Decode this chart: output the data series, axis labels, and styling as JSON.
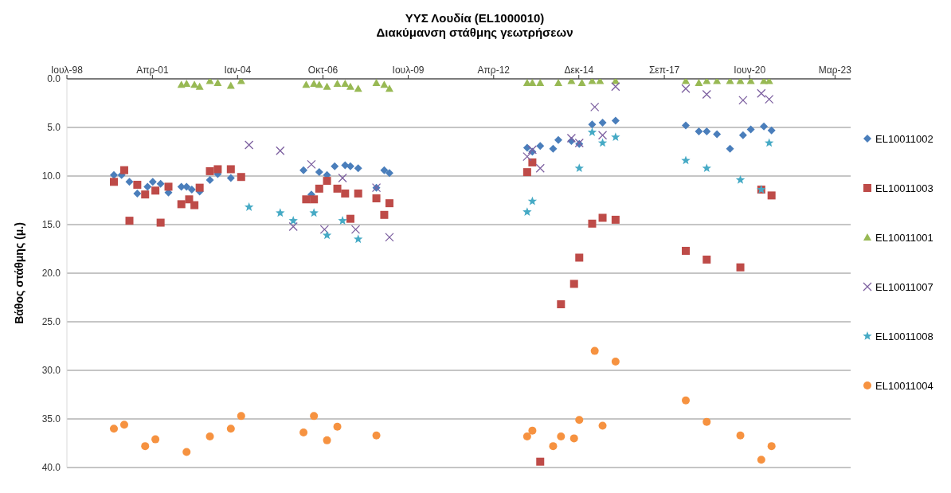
{
  "chart_data": {
    "type": "scatter",
    "title": "ΥΥΣ Λουδία (EL1000010)",
    "subtitle": "Διακύμανση στάθμης γεωτρήσεων",
    "ylabel": "Βάθος στάθμης (μ.)",
    "xlim": [
      "1998-07-31",
      "2023-09-13"
    ],
    "xticks": [
      {
        "value": "1998-07-31",
        "label": "Ιουλ-98"
      },
      {
        "value": "2001-04-27",
        "label": "Απρ-01"
      },
      {
        "value": "2004-01-19",
        "label": "Ιαν-04"
      },
      {
        "value": "2006-10-15",
        "label": "Οκτ-06"
      },
      {
        "value": "2009-07-09",
        "label": "Ιουλ-09"
      },
      {
        "value": "2012-04-04",
        "label": "Απρ-12"
      },
      {
        "value": "2014-12-27",
        "label": "Δεκ-14"
      },
      {
        "value": "2017-09-23",
        "label": "Σεπ-17"
      },
      {
        "value": "2020-06-17",
        "label": "Ιουν-20"
      },
      {
        "value": "2023-03-14",
        "label": "Μαρ-23"
      }
    ],
    "ylim": [
      40,
      0
    ],
    "yticks": [
      {
        "value": 0,
        "label": "0.0"
      },
      {
        "value": 5,
        "label": "5.0"
      },
      {
        "value": 10,
        "label": "10.0"
      },
      {
        "value": 15,
        "label": "15.0"
      },
      {
        "value": 20,
        "label": "20.0"
      },
      {
        "value": 25,
        "label": "25.0"
      },
      {
        "value": 30,
        "label": "30.0"
      },
      {
        "value": 35,
        "label": "35.0"
      },
      {
        "value": 40,
        "label": "40.0"
      }
    ],
    "grid": "y",
    "legend": "right",
    "series": [
      {
        "name": "EL10011002",
        "color": "#4a7ebb",
        "marker": "diamond",
        "x": [
          "2000-02",
          "2000-05",
          "2000-08",
          "2000-11",
          "2001-03",
          "2001-05",
          "2001-08",
          "2001-11",
          "2002-04",
          "2002-06",
          "2002-08",
          "2002-11",
          "2003-03",
          "2003-06",
          "2003-11",
          "2006-03",
          "2006-06",
          "2006-09",
          "2006-12",
          "2007-03",
          "2007-07",
          "2007-09",
          "2007-12",
          "2008-07",
          "2008-10",
          "2008-12",
          "2013-05",
          "2013-07",
          "2013-10",
          "2014-03",
          "2014-05",
          "2014-10",
          "2015-01",
          "2015-06",
          "2015-10",
          "2016-03",
          "2018-06",
          "2018-11",
          "2019-02",
          "2019-06",
          "2019-11",
          "2020-04",
          "2020-07",
          "2020-12",
          "2021-03"
        ],
        "values": [
          9.9,
          9.9,
          10.6,
          11.8,
          11.1,
          10.6,
          10.8,
          11.7,
          11.1,
          11.1,
          11.4,
          11.6,
          10.4,
          9.8,
          10.2,
          9.4,
          11.9,
          9.6,
          9.9,
          9.0,
          8.9,
          9.0,
          9.2,
          11.2,
          9.4,
          9.7,
          7.1,
          7.5,
          6.9,
          7.2,
          6.3,
          6.4,
          6.7,
          4.7,
          4.5,
          4.3,
          4.8,
          5.4,
          5.4,
          5.7,
          7.2,
          5.8,
          5.2,
          4.9,
          5.3
        ]
      },
      {
        "name": "EL10011003",
        "color": "#be4b48",
        "marker": "square",
        "x": [
          "2000-02",
          "2000-06",
          "2000-08",
          "2000-11",
          "2001-02",
          "2001-06",
          "2001-08",
          "2001-11",
          "2002-04",
          "2002-07",
          "2002-09",
          "2002-11",
          "2003-03",
          "2003-06",
          "2003-11",
          "2004-03",
          "2006-04",
          "2006-07",
          "2006-09",
          "2006-12",
          "2007-04",
          "2007-07",
          "2007-09",
          "2007-12",
          "2008-07",
          "2008-10",
          "2008-12",
          "2013-05",
          "2013-07",
          "2013-10",
          "2014-06",
          "2014-11",
          "2015-01",
          "2015-06",
          "2015-10",
          "2016-03",
          "2018-06",
          "2019-02",
          "2020-03",
          "2020-11",
          "2021-03"
        ],
        "values": [
          10.6,
          9.4,
          14.6,
          10.9,
          11.9,
          11.5,
          14.8,
          11.1,
          12.9,
          12.4,
          13.0,
          11.2,
          9.5,
          9.3,
          9.3,
          10.1,
          12.4,
          12.4,
          11.3,
          10.5,
          11.3,
          11.8,
          14.4,
          11.8,
          12.3,
          14.0,
          12.8,
          9.6,
          8.6,
          39.4,
          23.2,
          21.1,
          18.4,
          14.9,
          14.3,
          14.5,
          17.7,
          18.6,
          19.4,
          11.4,
          12.0
        ]
      },
      {
        "name": "EL10011001",
        "color": "#98b954",
        "marker": "triangle",
        "x": [
          "2002-04",
          "2002-06",
          "2002-09",
          "2002-11",
          "2003-03",
          "2003-06",
          "2003-11",
          "2004-03",
          "2006-04",
          "2006-07",
          "2006-09",
          "2006-12",
          "2007-04",
          "2007-07",
          "2007-09",
          "2007-12",
          "2008-07",
          "2008-10",
          "2008-12",
          "2013-05",
          "2013-07",
          "2013-10",
          "2014-05",
          "2014-10",
          "2015-02",
          "2015-06",
          "2015-09",
          "2016-03",
          "2018-06",
          "2018-11",
          "2019-02",
          "2019-06",
          "2019-11",
          "2020-03",
          "2020-07",
          "2020-12",
          "2021-02"
        ],
        "values": [
          0.6,
          0.5,
          0.6,
          0.8,
          0.2,
          0.4,
          0.7,
          0.2,
          0.6,
          0.5,
          0.6,
          0.8,
          0.5,
          0.5,
          0.8,
          1.0,
          0.4,
          0.6,
          1.0,
          0.4,
          0.4,
          0.4,
          0.4,
          0.2,
          0.4,
          0.2,
          0.2,
          0.2,
          0.2,
          0.4,
          0.2,
          0.2,
          0.2,
          0.2,
          0.2,
          0.2,
          0.2
        ]
      },
      {
        "name": "EL10011007",
        "color": "#7d60a0",
        "marker": "cross",
        "x": [
          "2004-06",
          "2005-06",
          "2005-11",
          "2006-06",
          "2006-11",
          "2007-06",
          "2007-11",
          "2008-07",
          "2008-12",
          "2013-05",
          "2013-07",
          "2013-10",
          "2014-10",
          "2015-01",
          "2015-07",
          "2015-10",
          "2016-03",
          "2018-06",
          "2019-02",
          "2020-04",
          "2020-11",
          "2021-02"
        ],
        "values": [
          6.8,
          7.4,
          15.2,
          8.8,
          15.5,
          10.2,
          15.5,
          11.2,
          16.3,
          8.0,
          7.3,
          9.2,
          6.1,
          6.6,
          2.9,
          5.8,
          0.8,
          1.0,
          1.6,
          2.2,
          1.5,
          2.1
        ]
      },
      {
        "name": "EL10011008",
        "color": "#46aac5",
        "marker": "star",
        "x": [
          "2004-06",
          "2005-06",
          "2005-11",
          "2006-07",
          "2006-12",
          "2007-06",
          "2007-12",
          "2013-05",
          "2013-07",
          "2015-01",
          "2015-06",
          "2015-10",
          "2016-03",
          "2018-06",
          "2019-02",
          "2020-03",
          "2020-11",
          "2021-02"
        ],
        "values": [
          13.2,
          13.8,
          14.6,
          13.8,
          16.1,
          14.6,
          16.5,
          13.7,
          12.6,
          9.2,
          5.5,
          6.6,
          6.0,
          8.4,
          9.2,
          10.4,
          11.4,
          6.6
        ]
      },
      {
        "name": "EL10011004",
        "color": "#f69240",
        "marker": "circle",
        "x": [
          "2000-02",
          "2000-06",
          "2001-02",
          "2001-06",
          "2002-06",
          "2003-03",
          "2003-11",
          "2004-03",
          "2006-03",
          "2006-07",
          "2006-12",
          "2007-04",
          "2008-07",
          "2013-05",
          "2013-07",
          "2014-03",
          "2014-06",
          "2014-11",
          "2015-01",
          "2015-07",
          "2015-10",
          "2016-03",
          "2018-06",
          "2019-02",
          "2020-03",
          "2020-11",
          "2021-03"
        ],
        "values": [
          36.0,
          35.6,
          37.8,
          37.1,
          38.4,
          36.8,
          36.0,
          34.7,
          36.4,
          34.7,
          37.2,
          35.8,
          36.7,
          36.8,
          36.2,
          37.8,
          36.8,
          37.0,
          35.1,
          28.0,
          35.7,
          29.1,
          33.1,
          35.3,
          36.7,
          39.2,
          37.8
        ]
      }
    ]
  }
}
